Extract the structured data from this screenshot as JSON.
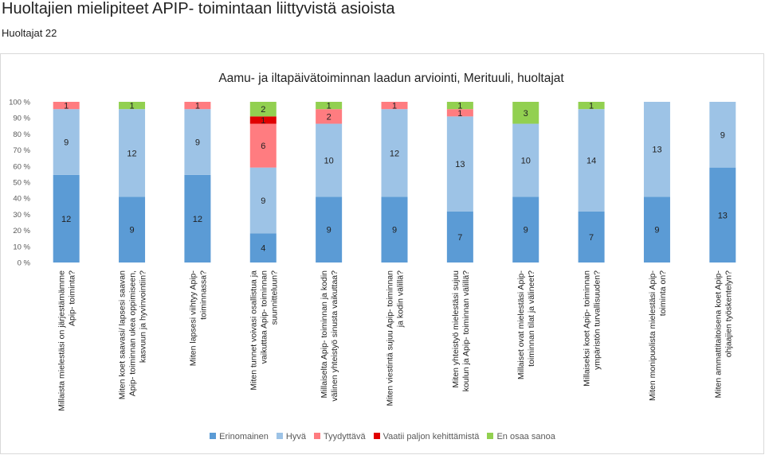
{
  "page": {
    "title": "Huoltajien mielipiteet APIP- toimintaan liittyvistä asioista",
    "subtitle": "Huoltajat 22"
  },
  "chart_data": {
    "type": "bar",
    "stacked": "percent",
    "title": "Aamu- ja iltapäivätoiminnan laadun arviointi, Merituuli, huoltajat",
    "ylim": [
      0,
      100
    ],
    "yticks": [
      "0 %",
      "10 %",
      "20 %",
      "30 %",
      "40 %",
      "50 %",
      "60 %",
      "70 %",
      "80 %",
      "90 %",
      "100 %"
    ],
    "grid": false,
    "legend_position": "bottom",
    "categories": [
      [
        "Millaista mielestäsi on järjestämämme",
        "Apip- toiminta?"
      ],
      [
        "Miten koet saavasi/ lapsesi saavan",
        "Apip- toiminnan ukea oppimiseen,",
        "kasvuun ja hyvinvointiin?"
      ],
      [
        "Miten lapsesi viihtyy Apip-",
        "toiminnassa?"
      ],
      [
        "Miten tunnet voivasi osallistua ja",
        "vaikuttaa Apip- toiminnan",
        "suunnitteluun?"
      ],
      [
        "Millaiselta Apip- toiminnan ja kodin",
        "välinen yhteistyö sinusta vaikuttaa?"
      ],
      [
        "Miten viestintä sujuu Apip- toiminnan",
        "ja kodin välillä?"
      ],
      [
        "Miten yhteistyö mielestäsi sujuu",
        "koulun ja Apip- toiminnan välillä?"
      ],
      [
        "Millaiset ovat mielestäsi Apip-",
        "toiminnan tilat ja välineet?"
      ],
      [
        "Millaiseksi koet Apip- toiminnan",
        "ympäristön turvallisuuden?"
      ],
      [
        "Miten monipuolista mielestäsi Apip-",
        "toiminta on?"
      ],
      [
        "Miten ammattitaitoisena koet Apip-",
        "ohjaajien työskentelyn?"
      ]
    ],
    "series": [
      {
        "name": "Erinomainen",
        "color": "#5b9bd5",
        "values": [
          12,
          9,
          12,
          4,
          9,
          9,
          7,
          9,
          7,
          9,
          13
        ]
      },
      {
        "name": "Hyvä",
        "color": "#9dc3e6",
        "values": [
          9,
          12,
          9,
          9,
          10,
          12,
          13,
          10,
          14,
          13,
          9
        ]
      },
      {
        "name": "Tyydyttävä",
        "color": "#ff7c80",
        "values": [
          1,
          0,
          1,
          6,
          2,
          1,
          1,
          0,
          0,
          0,
          0
        ]
      },
      {
        "name": "Vaatii paljon kehittämistä",
        "color": "#e00000",
        "values": [
          0,
          0,
          0,
          1,
          0,
          0,
          0,
          0,
          0,
          0,
          0
        ]
      },
      {
        "name": "En osaa sanoa",
        "color": "#92d050",
        "values": [
          0,
          1,
          0,
          2,
          1,
          0,
          1,
          3,
          1,
          0,
          0
        ]
      }
    ]
  }
}
